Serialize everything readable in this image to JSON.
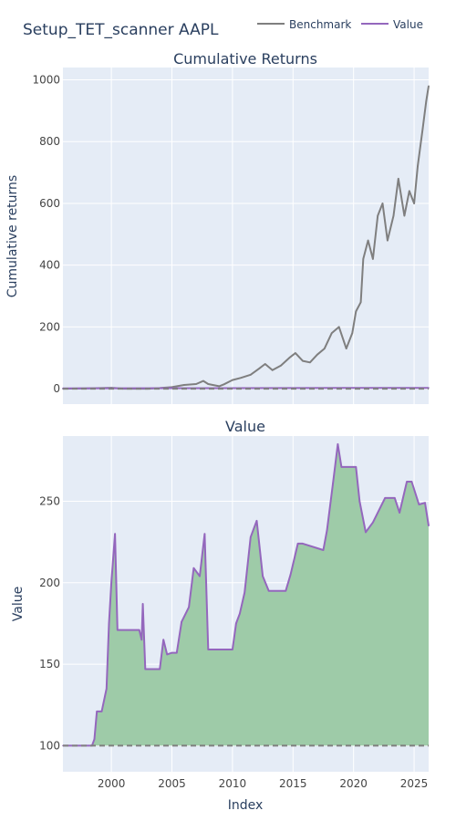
{
  "title": "Setup_TET_scanner AAPL",
  "legend": [
    {
      "name": "Benchmark",
      "color": "#7f7f7f"
    },
    {
      "name": "Value",
      "color": "#9467bd"
    }
  ],
  "colors": {
    "plot_bg": "#e5ecf6",
    "grid": "#ffffff",
    "fill": "#9ecba8",
    "baseline": "#7f7f7f"
  },
  "chart_data": [
    {
      "type": "line",
      "title": "Cumulative Returns",
      "ylabel": "Cumulative returns",
      "xlabel": "",
      "xlim": [
        1996,
        2026.2
      ],
      "ylim": [
        -50,
        1040
      ],
      "x_ticks": [
        "2000",
        "2005",
        "2010",
        "2015",
        "2020",
        "2025"
      ],
      "y_ticks": [
        "0",
        "200",
        "400",
        "600",
        "800",
        "1000"
      ],
      "grid": true,
      "legend": "top-right",
      "series": [
        {
          "name": "Benchmark",
          "color": "#7f7f7f",
          "x": [
            1996,
            1998,
            2000,
            2001,
            2003,
            2004,
            2005,
            2006,
            2007,
            2007.6,
            2008,
            2008.9,
            2009.3,
            2010,
            2010.7,
            2011.5,
            2012.2,
            2012.7,
            2013.3,
            2014,
            2014.7,
            2015.2,
            2015.8,
            2016.4,
            2017,
            2017.6,
            2018.2,
            2018.8,
            2019.4,
            2019.9,
            2020.2,
            2020.6,
            2020.8,
            2021.2,
            2021.6,
            2022,
            2022.4,
            2022.8,
            2023.3,
            2023.7,
            2024.2,
            2024.6,
            2025,
            2025.3,
            2025.7,
            2026,
            2026.2
          ],
          "y": [
            0,
            1,
            3,
            0,
            0,
            2,
            5,
            12,
            15,
            25,
            15,
            8,
            14,
            28,
            35,
            45,
            65,
            80,
            60,
            75,
            100,
            115,
            90,
            85,
            110,
            130,
            180,
            200,
            130,
            180,
            250,
            280,
            420,
            480,
            420,
            560,
            600,
            480,
            560,
            680,
            560,
            640,
            600,
            720,
            840,
            930,
            980
          ]
        },
        {
          "name": "Value",
          "color": "#9467bd",
          "x": [
            1996,
            2026.2
          ],
          "y": [
            1,
            2.5
          ]
        }
      ],
      "baseline": 0
    },
    {
      "type": "area",
      "title": "Value",
      "ylabel": "Value",
      "xlabel": "Index",
      "xlim": [
        1996,
        2026.2
      ],
      "ylim": [
        84,
        290
      ],
      "x_ticks": [
        "2000",
        "2005",
        "2010",
        "2015",
        "2020",
        "2025"
      ],
      "y_ticks": [
        "100",
        "150",
        "200",
        "250"
      ],
      "grid": true,
      "series": [
        {
          "name": "Value",
          "color": "#9467bd",
          "x": [
            1996,
            1998.4,
            1998.6,
            1998.8,
            1999.2,
            1999.6,
            1999.8,
            2000,
            2000.3,
            2000.5,
            2000.7,
            2002.3,
            2002.5,
            2002.6,
            2002.8,
            2003.5,
            2004,
            2004.3,
            2004.6,
            2005,
            2005.4,
            2005.8,
            2006.4,
            2006.8,
            2007.3,
            2007.7,
            2008,
            2008.3,
            2010,
            2010.3,
            2010.6,
            2011,
            2011.5,
            2012,
            2012.5,
            2013,
            2014.4,
            2014.8,
            2015.4,
            2015.8,
            2017.5,
            2017.8,
            2018.3,
            2018.7,
            2019,
            2020.2,
            2020.5,
            2021,
            2021.6,
            2022.2,
            2022.6,
            2023.4,
            2023.8,
            2024.4,
            2024.8,
            2025.4,
            2025.9,
            2026.2
          ],
          "y": [
            100,
            100,
            104,
            121,
            121,
            135,
            175,
            200,
            230,
            171,
            171,
            171,
            165,
            187,
            147,
            147,
            147,
            165,
            156,
            157,
            157,
            176,
            185,
            209,
            204,
            230,
            159,
            159,
            159,
            175,
            181,
            194,
            228,
            238,
            204,
            195,
            195,
            205,
            224,
            224,
            220,
            232,
            261,
            285,
            271,
            271,
            250,
            231,
            237,
            246,
            252,
            252,
            243,
            262,
            262,
            248,
            249,
            235
          ]
        }
      ],
      "baseline": 100
    }
  ]
}
